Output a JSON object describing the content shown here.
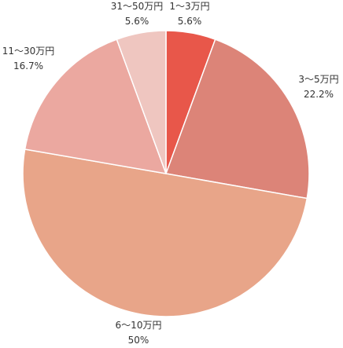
{
  "chart_data": {
    "type": "pie",
    "start_angle_deg": 0,
    "direction": "clockwise",
    "slices": [
      {
        "label": "1〜3万円",
        "percent_label": "5.6%",
        "value": 5.6,
        "color": "#e8574a"
      },
      {
        "label": "3〜5万円",
        "percent_label": "22.2%",
        "value": 22.2,
        "color": "#dc8478"
      },
      {
        "label": "6〜10万円",
        "percent_label": "50%",
        "value": 50,
        "color": "#e8a589"
      },
      {
        "label": "11〜30万円",
        "percent_label": "16.7%",
        "value": 16.7,
        "color": "#eba8a0"
      },
      {
        "label": "31〜50万円",
        "percent_label": "5.6%",
        "value": 5.6,
        "color": "#efc6c0"
      }
    ]
  }
}
